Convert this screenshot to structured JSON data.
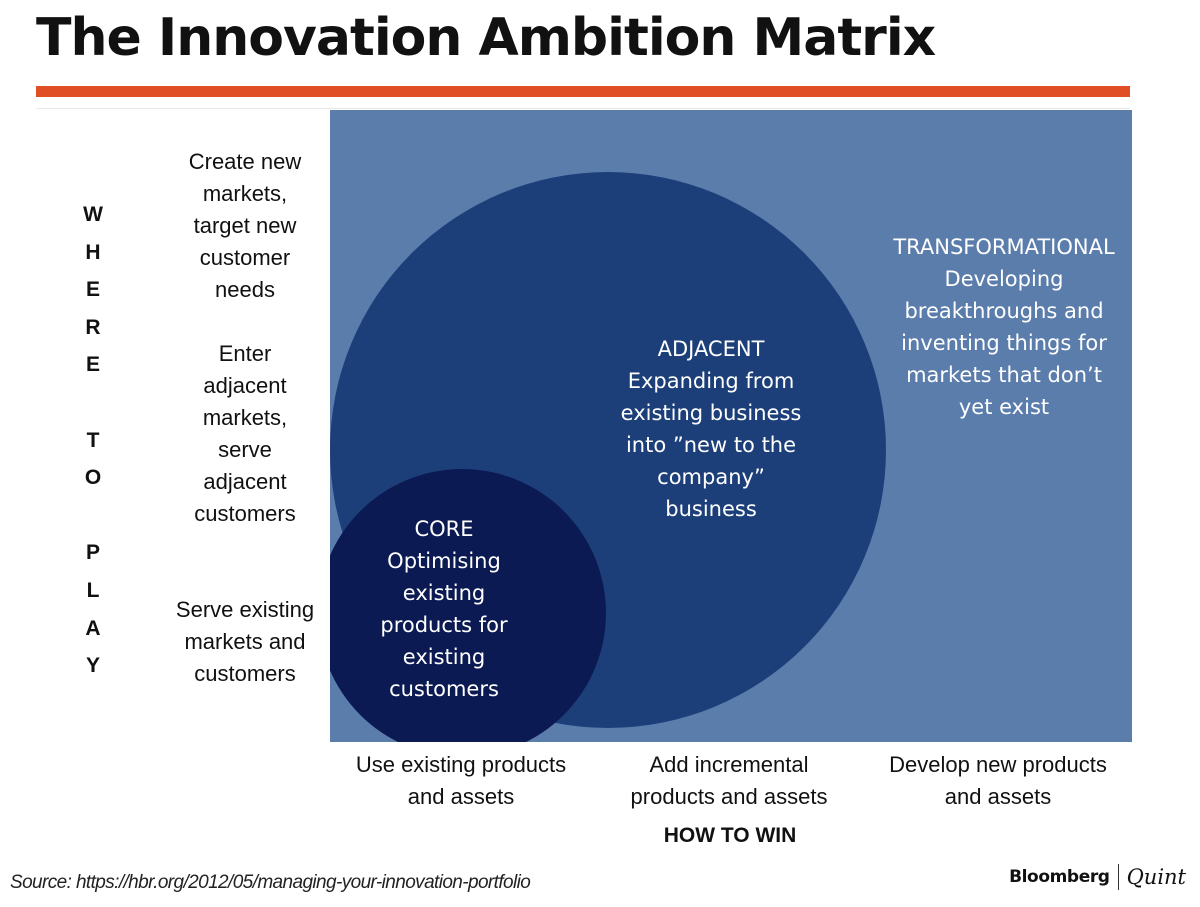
{
  "title": "The Innovation Ambition Matrix",
  "y_axis": {
    "title_letters": [
      "W",
      "H",
      "E",
      "R",
      "E",
      "",
      "T",
      "O",
      "",
      "P",
      "L",
      "A",
      "Y"
    ],
    "levels": [
      "Create new\nmarkets,\ntarget new\ncustomer\nneeds",
      "Enter\nadjacent\nmarkets,\nserve\nadjacent\ncustomers",
      "Serve existing\nmarkets and\ncustomers"
    ]
  },
  "x_axis": {
    "title": "HOW TO WIN",
    "levels": [
      "Use existing products\nand assets",
      "Add incremental\nproducts and assets",
      "Develop new products\nand assets"
    ]
  },
  "zones": {
    "core": {
      "lines": [
        "CORE",
        "Optimising",
        "existing",
        "products for",
        "existing",
        "customers"
      ],
      "color": "#0b1a52"
    },
    "adjacent": {
      "lines": [
        "ADJACENT",
        "Expanding from",
        "existing business",
        "into ”new to the",
        "company”",
        "business"
      ],
      "color": "#1c3f7a"
    },
    "transformational": {
      "lines": [
        "TRANSFORMATIONAL",
        "Developing",
        "breakthroughs and",
        "inventing things for",
        "markets that don’t",
        "yet exist"
      ],
      "color": "#5b7dab"
    }
  },
  "accent_color": "#e04e26",
  "source": "Source: https://hbr.org/2012/05/managing-your-innovation-portfolio",
  "brand": {
    "primary": "Bloomberg",
    "secondary": "Quint"
  }
}
